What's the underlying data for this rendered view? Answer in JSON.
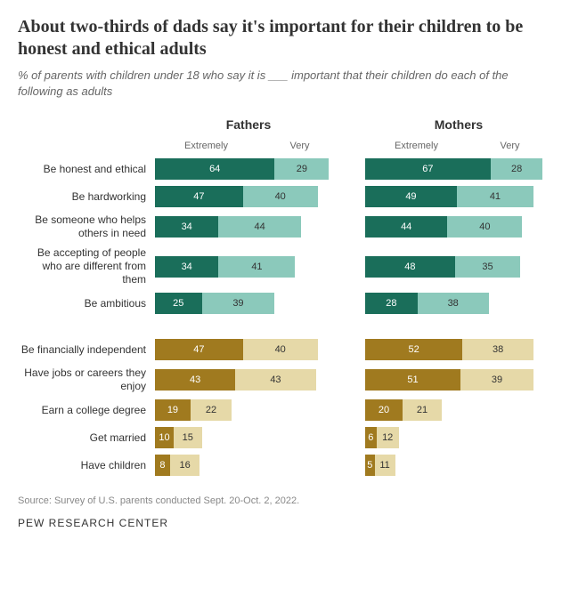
{
  "title": "About two-thirds of dads say it's important for their children to be honest and ethical adults",
  "subtitle": "% of parents with children under 18 who say it is ___ important that their children do each of the following as adults",
  "columns": {
    "left": "Fathers",
    "right": "Mothers"
  },
  "legend": {
    "extremely": "Extremely",
    "very": "Very"
  },
  "scale_max": 100,
  "palette": {
    "teal_dark": "#1a6e5a",
    "teal_light": "#8bc9bb",
    "brown_dark": "#a07a1f",
    "brown_light": "#e6d9a8"
  },
  "groups": [
    {
      "color_key": "teal",
      "rows": [
        {
          "label": "Be honest and ethical",
          "fathers": {
            "extremely": 64,
            "very": 29
          },
          "mothers": {
            "extremely": 67,
            "very": 28
          }
        },
        {
          "label": "Be hardworking",
          "fathers": {
            "extremely": 47,
            "very": 40
          },
          "mothers": {
            "extremely": 49,
            "very": 41
          }
        },
        {
          "label": "Be someone who helps others in need",
          "fathers": {
            "extremely": 34,
            "very": 44
          },
          "mothers": {
            "extremely": 44,
            "very": 40
          }
        },
        {
          "label": "Be accepting of people who are different from them",
          "fathers": {
            "extremely": 34,
            "very": 41
          },
          "mothers": {
            "extremely": 48,
            "very": 35
          }
        },
        {
          "label": "Be ambitious",
          "fathers": {
            "extremely": 25,
            "very": 39
          },
          "mothers": {
            "extremely": 28,
            "very": 38
          }
        }
      ]
    },
    {
      "color_key": "brown",
      "rows": [
        {
          "label": "Be financially independent",
          "fathers": {
            "extremely": 47,
            "very": 40
          },
          "mothers": {
            "extremely": 52,
            "very": 38
          }
        },
        {
          "label": "Have jobs or careers they enjoy",
          "fathers": {
            "extremely": 43,
            "very": 43
          },
          "mothers": {
            "extremely": 51,
            "very": 39
          }
        },
        {
          "label": "Earn a college degree",
          "fathers": {
            "extremely": 19,
            "very": 22
          },
          "mothers": {
            "extremely": 20,
            "very": 21
          }
        },
        {
          "label": "Get married",
          "fathers": {
            "extremely": 10,
            "very": 15
          },
          "mothers": {
            "extremely": 6,
            "very": 12
          }
        },
        {
          "label": "Have children",
          "fathers": {
            "extremely": 8,
            "very": 16
          },
          "mothers": {
            "extremely": 5,
            "very": 11
          }
        }
      ]
    }
  ],
  "source": "Source: Survey of U.S. parents conducted Sept. 20-Oct. 2, 2022.",
  "footer": "PEW RESEARCH CENTER"
}
